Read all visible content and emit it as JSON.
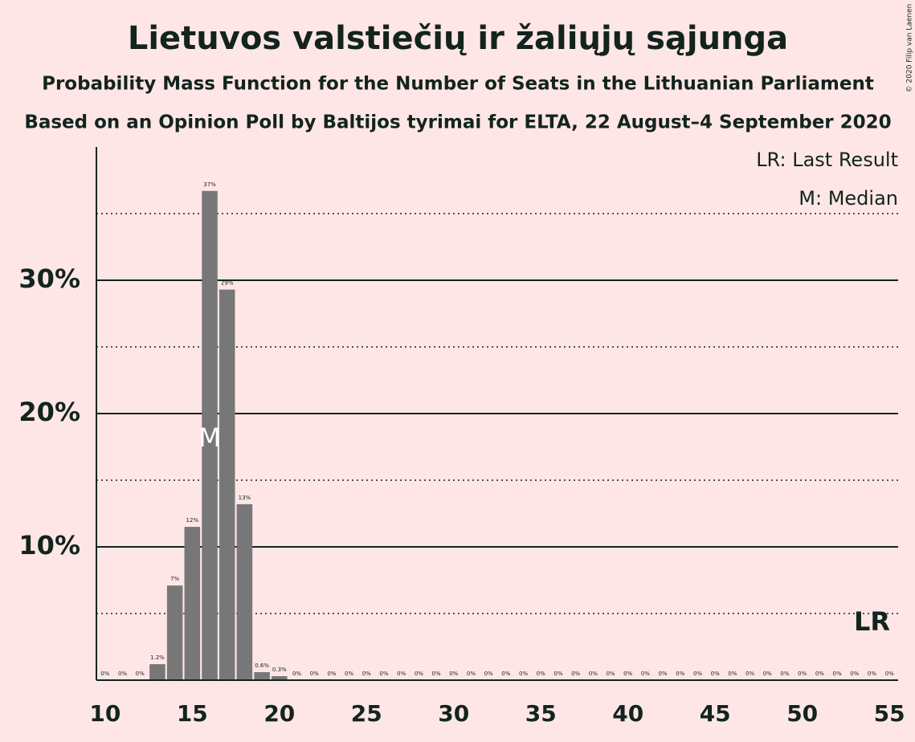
{
  "chart_data": {
    "type": "bar",
    "title": "Lietuvos valstiečių ir žaliųjų sąjunga",
    "subtitles": [
      "Probability Mass Function for the Number of Seats in the Lithuanian Parliament",
      "Based on an Opinion Poll by Baltijos tyrimai for ELTA, 22 August–4 September 2020"
    ],
    "x": [
      10,
      11,
      12,
      13,
      14,
      15,
      16,
      17,
      18,
      19,
      20,
      21,
      22,
      23,
      24,
      25,
      26,
      27,
      28,
      29,
      30,
      31,
      32,
      33,
      34,
      35,
      36,
      37,
      38,
      39,
      40,
      41,
      42,
      43,
      44,
      45,
      46,
      47,
      48,
      49,
      50,
      51,
      52,
      53,
      54,
      55
    ],
    "values": [
      0,
      0,
      0,
      1.2,
      7.1,
      11.5,
      36.7,
      29.3,
      13.2,
      0.6,
      0.3,
      0,
      0,
      0,
      0,
      0,
      0,
      0,
      0,
      0,
      0,
      0,
      0,
      0,
      0,
      0,
      0,
      0,
      0,
      0,
      0,
      0,
      0,
      0,
      0,
      0,
      0,
      0,
      0,
      0,
      0,
      0,
      0,
      0,
      0,
      0
    ],
    "value_labels": [
      "0%",
      "0%",
      "0%",
      "1.2%",
      "7%",
      "12%",
      "37%",
      "29%",
      "13%",
      "0.6%",
      "0.3%",
      "0%",
      "0%",
      "0%",
      "0%",
      "0%",
      "0%",
      "0%",
      "0%",
      "0%",
      "0%",
      "0%",
      "0%",
      "0%",
      "0%",
      "0%",
      "0%",
      "0%",
      "0%",
      "0%",
      "0%",
      "0%",
      "0%",
      "0%",
      "0%",
      "0%",
      "0%",
      "0%",
      "0%",
      "0%",
      "0%",
      "0%",
      "0%",
      "0%",
      "0%",
      "0%"
    ],
    "color": "#777777",
    "xlim": [
      9.5,
      55.5
    ],
    "xticks": [
      10,
      15,
      20,
      25,
      30,
      35,
      40,
      45,
      50,
      55
    ],
    "ylim": [
      0,
      40
    ],
    "yticks": [
      {
        "value": 10,
        "label": "10%"
      },
      {
        "value": 20,
        "label": "20%"
      },
      {
        "value": 30,
        "label": "30%"
      }
    ],
    "yminor": [
      5,
      15,
      25,
      35
    ],
    "grid": true,
    "median": {
      "x": 16,
      "label": "M"
    },
    "last_result": {
      "x": 54,
      "label": "LR"
    },
    "legend": [
      "LR: Last Result",
      "M: Median"
    ],
    "copyright": "© 2020 Filip van Laenen"
  }
}
